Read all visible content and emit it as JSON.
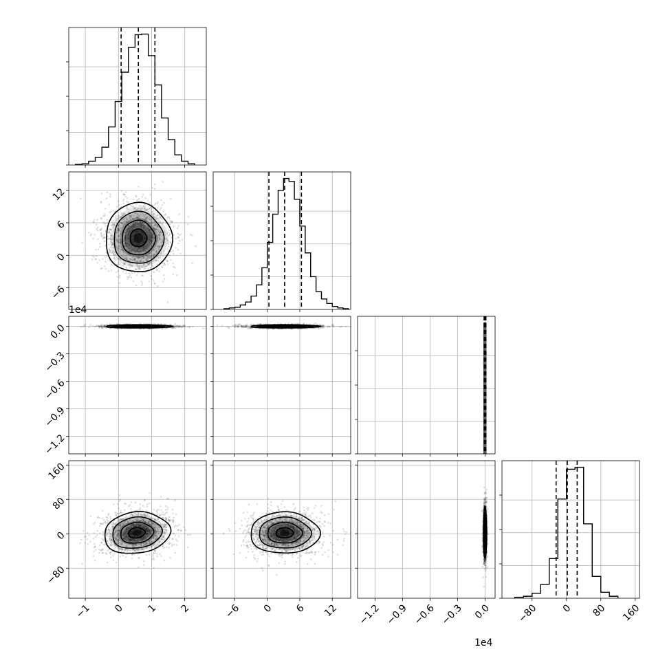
{
  "chart_data": {
    "type": "corner",
    "title": "",
    "colors": {
      "line": "#000000",
      "grid": "#b0b0b0",
      "scatter": "#000000",
      "density": "#000000"
    },
    "grid": true,
    "histogram_style": "step",
    "quantile_lines": "dashed",
    "parameters": [
      {
        "name": "",
        "range": [
          -1.5,
          2.65
        ],
        "ticks": [
          -1,
          0,
          1,
          2
        ],
        "tick_labels": [
          "−1",
          "0",
          "1",
          "2"
        ],
        "median": 0.6,
        "quantiles": [
          0.08,
          0.6,
          1.1
        ]
      },
      {
        "name": "",
        "range": [
          -10,
          15.4
        ],
        "ticks": [
          -6,
          0,
          6,
          12
        ],
        "tick_labels": [
          "−6",
          "0",
          "6",
          "12"
        ],
        "median": 3.2,
        "quantiles": [
          0.3,
          3.2,
          6.3
        ]
      },
      {
        "name": "",
        "range": [
          -1.39,
          0.11
        ],
        "ticks": [
          -1.2,
          -0.9,
          -0.6,
          -0.3,
          0.0
        ],
        "tick_labels": [
          "−1.2",
          "−0.9",
          "−0.6",
          "−0.3",
          "0.0"
        ],
        "offset_text": "1e4",
        "median": 0.0,
        "quantiles": [
          -0.01,
          0.0,
          0.01
        ]
      },
      {
        "name": "",
        "range": [
          -150,
          170
        ],
        "ticks": [
          -80,
          0,
          80,
          160
        ],
        "tick_labels": [
          "−80",
          "0",
          "80",
          "160"
        ],
        "median": 2,
        "quantiles": [
          -24,
          2,
          25
        ]
      }
    ],
    "histograms": [
      {
        "param": 0,
        "bin_edges": [
          -1.3,
          -1.1,
          -0.9,
          -0.7,
          -0.5,
          -0.3,
          -0.1,
          0.1,
          0.3,
          0.5,
          0.7,
          0.9,
          1.1,
          1.3,
          1.5,
          1.7,
          1.9,
          2.1,
          2.3
        ],
        "counts": [
          1,
          2,
          6,
          12,
          28,
          60,
          100,
          146,
          185,
          205,
          206,
          172,
          126,
          74,
          40,
          16,
          6,
          2
        ]
      },
      {
        "param": 1,
        "bin_edges": [
          -8,
          -7,
          -6,
          -5,
          -4,
          -3,
          -2,
          -1,
          0,
          1,
          2,
          3,
          4,
          5,
          6,
          7,
          8,
          9,
          10,
          11,
          12,
          13,
          14,
          15
        ],
        "counts": [
          1,
          2,
          3,
          6,
          10,
          18,
          33,
          56,
          90,
          128,
          160,
          176,
          172,
          148,
          112,
          76,
          44,
          24,
          14,
          8,
          4,
          2,
          1
        ]
      },
      {
        "param": 2,
        "bin_edges": [
          -0.02,
          -0.01,
          0.01,
          0.02
        ],
        "counts": [
          0,
          10,
          0
        ]
      },
      {
        "param": 3,
        "bin_edges": [
          -120,
          -100,
          -80,
          -60,
          -40,
          -20,
          0,
          20,
          40,
          60,
          80,
          100,
          120
        ],
        "counts": [
          1,
          2,
          5,
          14,
          40,
          100,
          130,
          132,
          75,
          22,
          6,
          2
        ]
      }
    ],
    "panels_2d": [
      {
        "x_param": 0,
        "y_param": 1,
        "center": [
          0.6,
          3.2
        ],
        "spread": [
          0.5,
          3.2
        ],
        "rotation": 0
      },
      {
        "x_param": 0,
        "y_param": 2,
        "center": [
          0.6,
          0.0
        ],
        "spread": [
          0.5,
          0.0045
        ],
        "rotation": 0
      },
      {
        "x_param": 1,
        "y_param": 2,
        "center": [
          3.2,
          0.0
        ],
        "spread": [
          3.2,
          0.0045
        ],
        "rotation": 0
      },
      {
        "x_param": 0,
        "y_param": 3,
        "center": [
          0.55,
          2
        ],
        "spread": [
          0.5,
          24
        ],
        "rotation": -0.12
      },
      {
        "x_param": 1,
        "y_param": 3,
        "center": [
          3.2,
          2
        ],
        "spread": [
          3.2,
          24
        ],
        "rotation": 0
      },
      {
        "x_param": 2,
        "y_param": 3,
        "center": [
          0.0,
          2
        ],
        "spread": [
          0.0015,
          30
        ],
        "rotation": 0
      }
    ]
  }
}
